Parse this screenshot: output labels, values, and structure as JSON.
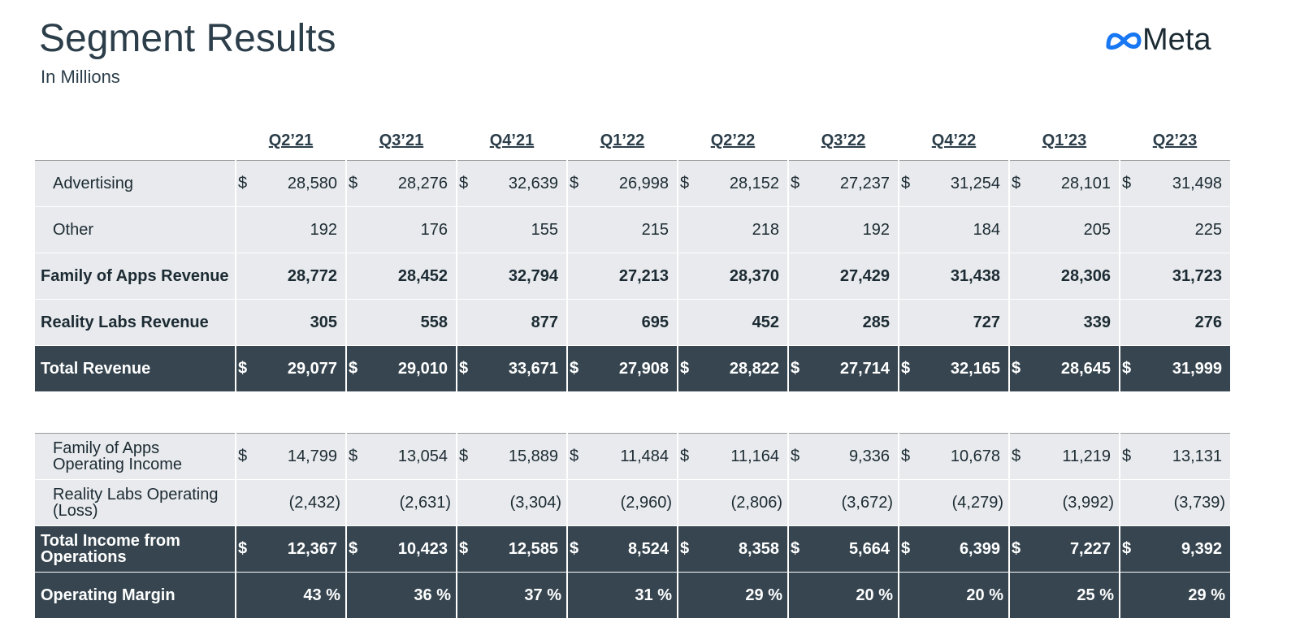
{
  "header": {
    "title": "Segment Results",
    "subtitle": "In Millions",
    "logo": "Meta"
  },
  "table": {
    "columns": [
      "Q2’21",
      "Q3’21",
      "Q4’21",
      "Q1’22",
      "Q2’22",
      "Q3’22",
      "Q4’22",
      "Q1’23",
      "Q2’23"
    ],
    "currency": "$",
    "sections": [
      {
        "rows": [
          {
            "label": "Advertising",
            "cells": [
              "28,580",
              "28,276",
              "32,639",
              "26,998",
              "28,152",
              "27,237",
              "31,254",
              "28,101",
              "31,498"
            ]
          },
          {
            "label": "Other",
            "cells": [
              "192",
              "176",
              "155",
              "215",
              "218",
              "192",
              "184",
              "205",
              "225"
            ]
          },
          {
            "label": "Family of Apps Revenue",
            "cells": [
              "28,772",
              "28,452",
              "32,794",
              "27,213",
              "28,370",
              "27,429",
              "31,438",
              "28,306",
              "31,723"
            ]
          },
          {
            "label": "Reality Labs Revenue",
            "cells": [
              "305",
              "558",
              "877",
              "695",
              "452",
              "285",
              "727",
              "339",
              "276"
            ]
          },
          {
            "label": "Total Revenue",
            "cells": [
              "29,077",
              "29,010",
              "33,671",
              "27,908",
              "28,822",
              "27,714",
              "32,165",
              "28,645",
              "31,999"
            ]
          }
        ]
      },
      {
        "rows": [
          {
            "label": "Family of Apps Operating Income",
            "cells": [
              "14,799",
              "13,054",
              "15,889",
              "11,484",
              "11,164",
              "9,336",
              "10,678",
              "11,219",
              "13,131"
            ]
          },
          {
            "label": "Reality Labs Operating (Loss)",
            "cells": [
              "(2,432)",
              "(2,631)",
              "(3,304)",
              "(2,960)",
              "(2,806)",
              "(3,672)",
              "(4,279)",
              "(3,992)",
              "(3,739)"
            ]
          },
          {
            "label": "Total Income from Operations",
            "cells": [
              "12,367",
              "10,423",
              "12,585",
              "8,524",
              "8,358",
              "5,664",
              "6,399",
              "7,227",
              "9,392"
            ]
          },
          {
            "label": "Operating Margin",
            "cells": [
              "43 %",
              "36 %",
              "37 %",
              "31 %",
              "29 %",
              "20 %",
              "20 %",
              "25 %",
              "29 %"
            ]
          }
        ]
      }
    ]
  }
}
